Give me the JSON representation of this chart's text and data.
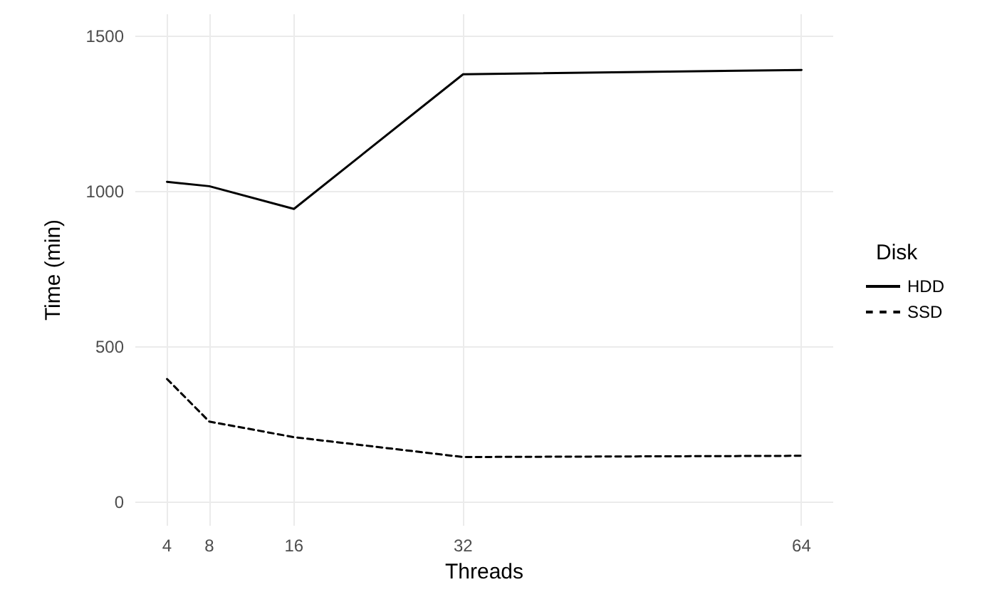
{
  "chart_data": {
    "type": "line",
    "xlabel": "Threads",
    "ylabel": "Time (min)",
    "legend_title": "Disk",
    "legend": "right",
    "grid": true,
    "marker": "none",
    "x": [
      4,
      8,
      16,
      32,
      64
    ],
    "xlim": [
      1,
      67
    ],
    "xticks": [
      4,
      8,
      16,
      32,
      64
    ],
    "ylim": [
      -75,
      1570
    ],
    "yticks": [
      0,
      500,
      1000,
      1500
    ],
    "series": [
      {
        "name": "HDD",
        "color": "#000000",
        "line_style": "solid",
        "values": [
          1031,
          1017,
          944,
          1377,
          1391
        ]
      },
      {
        "name": "SSD",
        "color": "#000000",
        "line_style": "dashed",
        "values": [
          397,
          260,
          210,
          146,
          150
        ]
      }
    ]
  }
}
